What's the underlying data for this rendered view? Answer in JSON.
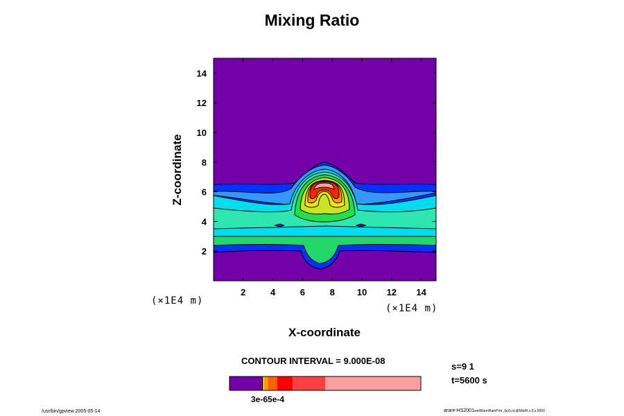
{
  "chart_data": {
    "type": "heatmap",
    "title": "Mixing Ratio",
    "xlabel": "X-coordinate",
    "ylabel": "Z-coordinate",
    "x_unit": "(×1E4 m)",
    "y_unit": "(×1E4 m)",
    "xlim": [
      0,
      15
    ],
    "ylim": [
      0,
      15
    ],
    "x_ticks": [
      2,
      4,
      6,
      8,
      10,
      12,
      14
    ],
    "y_ticks": [
      2,
      4,
      6,
      8,
      10,
      12,
      14
    ],
    "x_tick_labels": [
      "2",
      "4",
      "6",
      "8",
      "10",
      "12",
      "14"
    ],
    "y_tick_labels": [
      "2",
      "4",
      "6",
      "8",
      "10",
      "12",
      "14"
    ],
    "background_color": "#7400a8",
    "colorbar": {
      "label": "3e-65e-4",
      "segments": [
        {
          "from": 0.0,
          "to": 0.17,
          "color": "#7400a8"
        },
        {
          "from": 0.17,
          "to": 0.175,
          "color": "#000000"
        },
        {
          "from": 0.175,
          "to": 0.18,
          "color": "#ffd000"
        },
        {
          "from": 0.18,
          "to": 0.2,
          "color": "#ff9a00"
        },
        {
          "from": 0.2,
          "to": 0.25,
          "color": "#ff6000"
        },
        {
          "from": 0.25,
          "to": 0.33,
          "color": "#ff0000"
        },
        {
          "from": 0.33,
          "to": 0.5,
          "color": "#ff4040"
        },
        {
          "from": 0.5,
          "to": 1.0,
          "color": "#ff9e9e"
        }
      ]
    }
  },
  "labels": {
    "title": "Mixing Ratio",
    "xlabel": "X-coordinate",
    "ylabel": "Z-coordinate",
    "x_unit_left": "(×1E4 m)",
    "x_unit_right": "(×1E4 m)",
    "contour_interval": "CONTOUR INTERVAL = 9.000E-08",
    "step": "s=9 1",
    "time": "t=5600 s",
    "colorbar_label": "3e-65e-4",
    "footer_left": "/usr/bin/gpview 2005-05-14",
    "footer_right": "arare-HS2001",
    "footer_right_small": "wetWarmRainPrm_dry5.nc@MixRt,x,0,z,5000"
  }
}
